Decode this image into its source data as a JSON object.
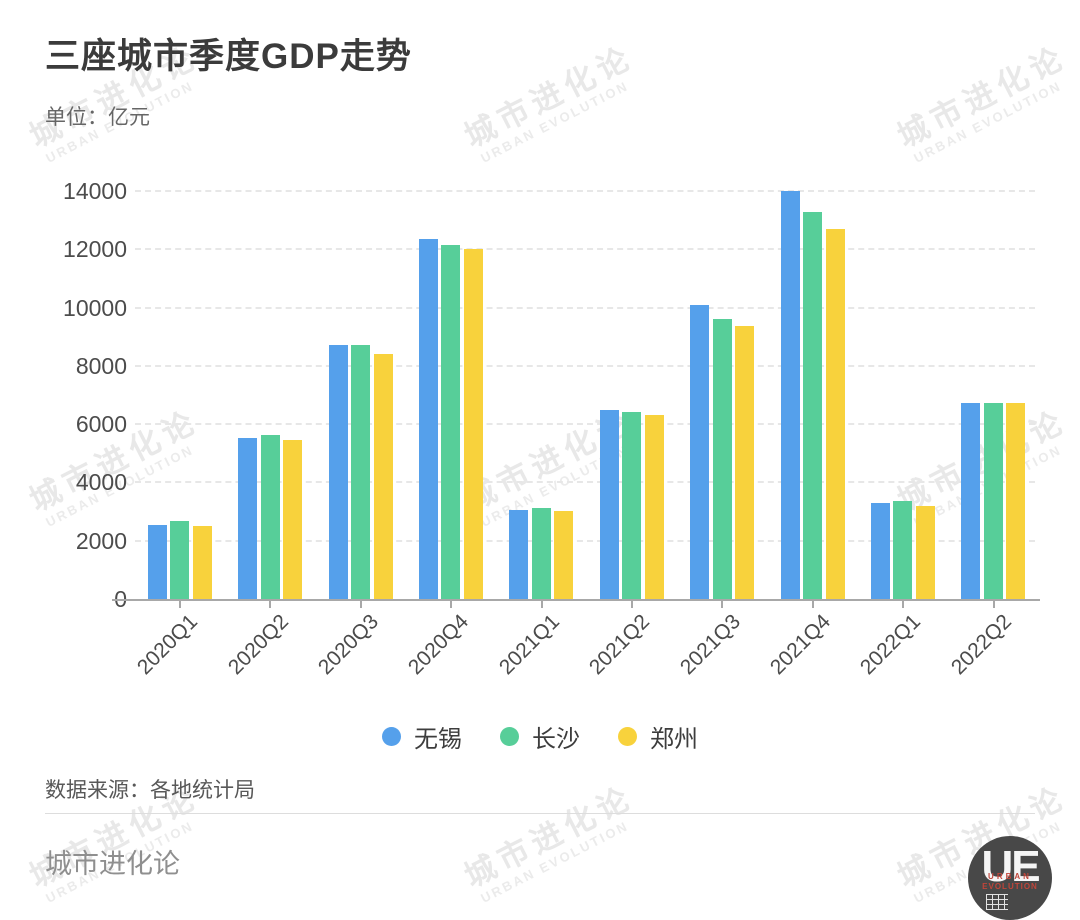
{
  "header": {
    "title": "三座城市季度GDP走势",
    "subtitle": "单位：亿元"
  },
  "chart_data": {
    "type": "bar",
    "title": "三座城市季度GDP走势",
    "unit": "亿元",
    "categories": [
      "2020Q1",
      "2020Q2",
      "2020Q3",
      "2020Q4",
      "2021Q1",
      "2021Q2",
      "2021Q3",
      "2021Q4",
      "2022Q1",
      "2022Q2"
    ],
    "series": [
      {
        "name": "无锡",
        "color": "#55A0EB",
        "values": [
          2536,
          5516,
          8715,
          12370,
          3065,
          6493,
          10072,
          14003,
          3303,
          6714
        ]
      },
      {
        "name": "长沙",
        "color": "#57CE99",
        "values": [
          2665,
          5622,
          8729,
          12143,
          3111,
          6428,
          9624,
          13271,
          3347,
          6711
        ]
      },
      {
        "name": "郑州",
        "color": "#F8D23C",
        "values": [
          2520,
          5460,
          8418,
          12003,
          3016,
          6325,
          9376,
          12691,
          3188,
          6740
        ]
      }
    ],
    "ylim": [
      0,
      14000
    ],
    "yticks": [
      0,
      2000,
      4000,
      6000,
      8000,
      10000,
      12000,
      14000
    ],
    "grid": "horizontal-dashed",
    "legend_position": "bottom"
  },
  "footer": {
    "source": "数据来源：各地统计局",
    "brand": "城市进化论"
  },
  "watermark": {
    "cn": "城市进化论",
    "en": "URBAN EVOLUTION"
  },
  "logo": {
    "monogram": "UE",
    "caption_line1": "URBAN",
    "caption_line2": "EVOLUTION"
  }
}
